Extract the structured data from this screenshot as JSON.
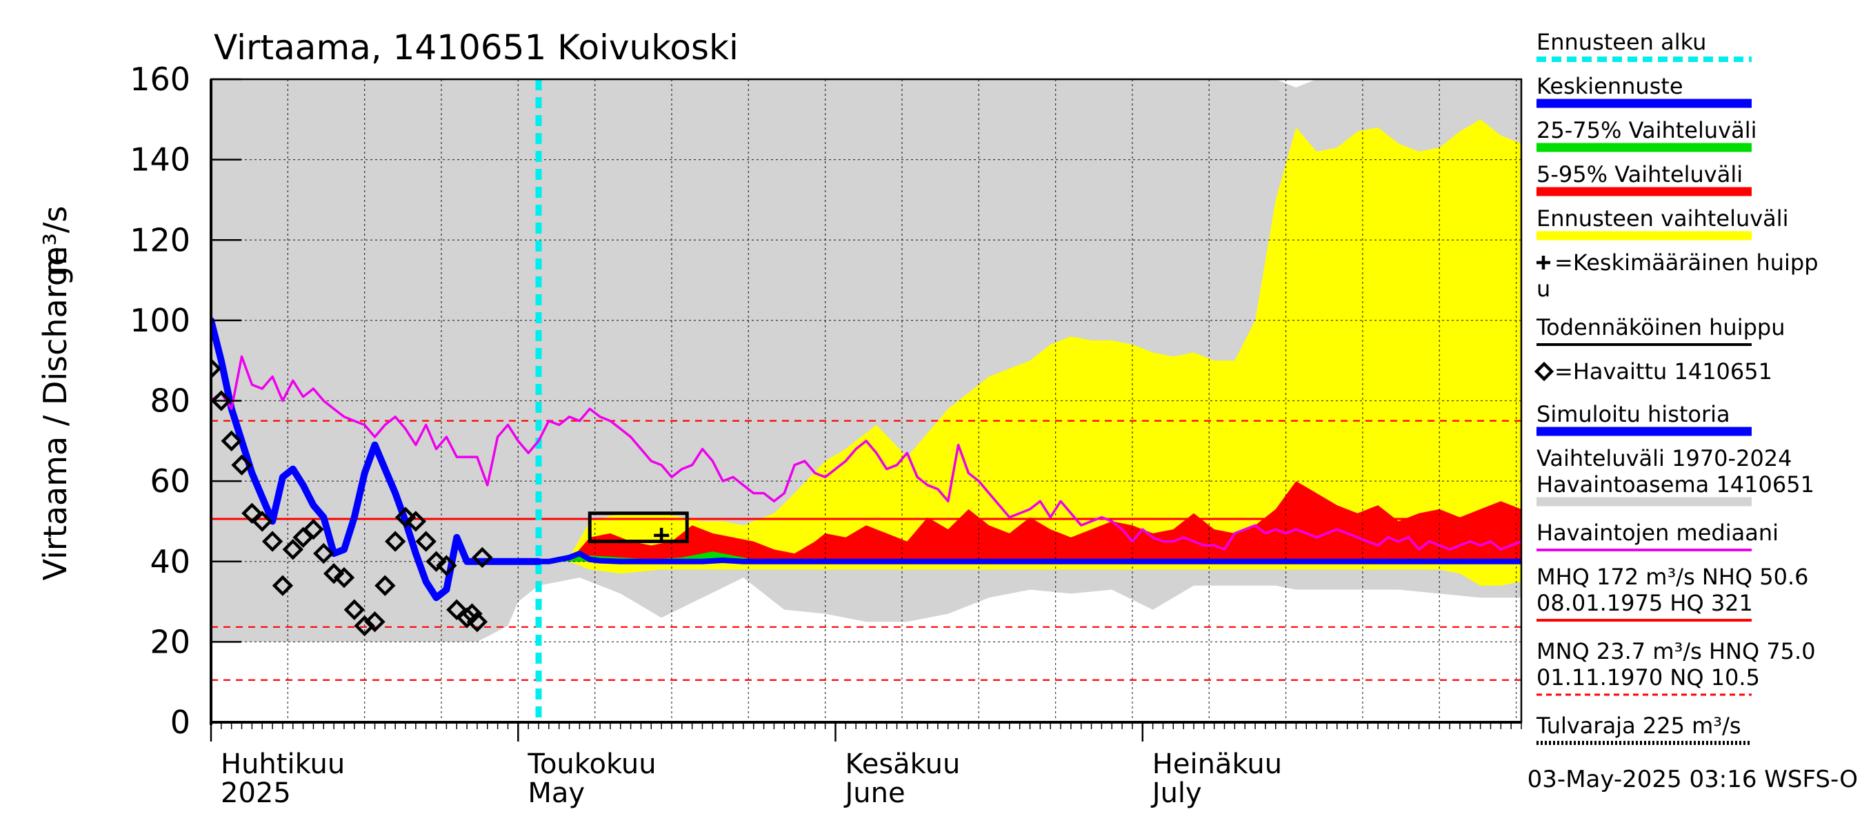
{
  "colors": {
    "hist_range": "#d3d3d3",
    "forecast_range": "#ffff00",
    "range_5_95": "#ff0000",
    "range_25_75": "#00dd00",
    "mean_forecast": "#0000ff",
    "simulated": "#0000ff",
    "median": "#ee00ee",
    "forecast_start": "#00eeee",
    "reference": "#ff0000",
    "peak": "#000000"
  },
  "chart_data": {
    "type": "line",
    "title": "Virtaama, 1410651 Koivukoski",
    "ylabel": "Virtaama / Discharge",
    "yunit": "m³/s",
    "ylim": [
      0,
      160
    ],
    "yticks": [
      0,
      20,
      40,
      60,
      80,
      100,
      120,
      140,
      160
    ],
    "x_range_days": [
      0,
      128
    ],
    "forecast_start_day": 32,
    "months": [
      {
        "label_fi": "Huhtikuu",
        "label_en": "2025",
        "day": 0
      },
      {
        "label_fi": "Toukokuu",
        "label_en": "May",
        "day": 30
      },
      {
        "label_fi": "Kesäkuu",
        "label_en": "June",
        "day": 61
      },
      {
        "label_fi": "Heinäkuu",
        "label_en": "July",
        "day": 91
      }
    ],
    "reference_lines": [
      {
        "name": "NHQ",
        "value": 50.6,
        "style": "solid"
      },
      {
        "name": "HNQ",
        "value": 75.0,
        "style": "dashed"
      },
      {
        "name": "MNQ",
        "value": 23.7,
        "style": "dashed"
      },
      {
        "name": "NQ",
        "value": 10.5,
        "style": "dashed"
      }
    ],
    "hist_range": {
      "x": [
        0,
        8,
        14,
        20,
        26,
        29,
        30,
        32,
        36,
        40,
        44,
        48,
        52,
        56,
        60,
        64,
        68,
        72,
        76,
        80,
        84,
        88,
        92,
        96,
        100,
        104,
        106,
        108,
        112,
        116,
        120,
        124,
        128
      ],
      "upper": [
        160,
        160,
        160,
        160,
        160,
        160,
        160,
        160,
        160,
        160,
        160,
        160,
        160,
        160,
        160,
        160,
        160,
        160,
        160,
        160,
        160,
        160,
        160,
        160,
        160,
        160,
        158,
        160,
        160,
        160,
        160,
        160,
        160
      ],
      "lower": [
        20,
        20,
        20,
        20,
        20,
        24,
        30,
        34,
        36,
        32,
        26,
        31,
        36,
        28,
        27,
        25,
        25,
        27,
        31,
        33,
        32,
        33,
        28,
        34,
        34,
        34,
        33,
        33,
        33,
        33,
        32,
        31,
        31
      ]
    },
    "forecast_range": {
      "x": [
        32,
        35,
        37,
        40,
        44,
        48,
        50,
        52,
        55,
        57,
        60,
        62,
        65,
        68,
        72,
        76,
        80,
        82,
        84,
        86,
        88,
        90,
        92,
        94,
        96,
        98,
        100,
        102,
        104,
        106,
        108,
        110,
        112,
        114,
        116,
        118,
        120,
        122,
        124,
        126,
        128
      ],
      "upper": [
        40,
        41,
        50,
        52,
        52,
        50,
        50,
        49,
        52,
        57,
        65,
        68,
        74,
        66,
        78,
        86,
        90,
        94,
        96,
        95,
        95,
        94,
        92,
        91,
        92,
        90,
        90,
        100,
        130,
        148,
        142,
        143,
        147,
        148,
        144,
        142,
        143,
        147,
        150,
        146,
        144
      ],
      "lower": [
        40,
        40,
        38,
        37,
        38,
        38,
        38,
        38,
        38,
        38,
        38,
        38,
        38,
        38,
        38,
        38,
        38,
        38,
        38,
        38,
        38,
        38,
        38,
        38,
        38,
        38,
        38,
        38,
        38,
        38,
        38,
        38,
        38,
        38,
        38,
        38,
        38,
        37,
        34,
        34,
        35
      ]
    },
    "range_5_95": {
      "x": [
        32,
        35,
        37,
        39,
        41,
        43,
        45,
        47,
        49,
        51,
        53,
        55,
        57,
        59,
        60,
        62,
        64,
        66,
        68,
        70,
        72,
        74,
        76,
        78,
        80,
        82,
        84,
        86,
        88,
        90,
        92,
        94,
        96,
        98,
        100,
        102,
        104,
        106,
        108,
        110,
        112,
        114,
        116,
        118,
        120,
        122,
        124,
        126,
        128
      ],
      "upper": [
        40,
        40,
        46,
        47,
        45,
        44,
        45,
        49,
        47,
        46,
        45,
        43,
        42,
        45,
        47,
        46,
        49,
        47,
        45,
        51,
        48,
        53,
        49,
        47,
        51,
        48,
        46,
        48,
        50,
        49,
        47,
        48,
        52,
        48,
        47,
        49,
        53,
        60,
        57,
        54,
        52,
        54,
        50,
        52,
        53,
        51,
        53,
        55,
        53
      ],
      "lower": [
        40,
        40,
        40,
        40,
        40,
        40,
        40,
        40,
        40,
        40,
        40,
        40,
        40,
        40,
        40,
        40,
        40,
        40,
        40,
        40,
        40,
        40,
        40,
        40,
        40,
        40,
        40,
        40,
        40,
        40,
        40,
        40,
        40,
        40,
        40,
        40,
        40,
        40,
        40,
        40,
        40,
        40,
        40,
        40,
        40,
        40,
        40,
        40,
        40
      ]
    },
    "range_25_75": {
      "x": [
        32,
        37,
        40,
        43,
        46,
        49,
        51,
        53,
        128
      ],
      "upper": [
        40,
        41.5,
        41,
        40.5,
        41,
        42.5,
        41.5,
        40.5,
        40.3
      ],
      "lower": [
        40,
        40,
        40,
        40,
        40,
        40,
        40,
        40,
        40
      ]
    },
    "series": [
      {
        "name": "Simuloitu historia",
        "x": [
          0,
          1,
          2,
          3,
          4,
          5,
          6,
          7,
          8,
          9,
          10,
          11,
          12,
          13,
          14,
          15,
          16,
          17,
          18,
          19,
          20,
          21,
          22,
          23,
          24,
          25,
          26,
          27,
          28,
          29,
          30,
          31,
          32
        ],
        "values": [
          100,
          90,
          78,
          70,
          62,
          56,
          50,
          61,
          63,
          59,
          54,
          51,
          42,
          43,
          51,
          62,
          69,
          63,
          57,
          50,
          42,
          35,
          31,
          33,
          46,
          40,
          40,
          40,
          40,
          40,
          40,
          40,
          40
        ]
      },
      {
        "name": "Keskiennuste",
        "x": [
          32,
          33,
          35,
          36,
          37,
          38,
          40,
          43,
          46,
          48,
          50,
          52,
          128
        ],
        "values": [
          40,
          40,
          41,
          42,
          40.5,
          40.2,
          40,
          40,
          40,
          40,
          40.3,
          40,
          40
        ]
      },
      {
        "name": "Havaintojen mediaani",
        "x": [
          0,
          1,
          2,
          3,
          4,
          5,
          6,
          7,
          8,
          9,
          10,
          11,
          12,
          13,
          14,
          15,
          16,
          17,
          18,
          19,
          20,
          21,
          22,
          23,
          24,
          25,
          26,
          27,
          28,
          29,
          30,
          31,
          32,
          33,
          34,
          35,
          36,
          37,
          38,
          39,
          40,
          41,
          42,
          43,
          44,
          45,
          46,
          47,
          48,
          49,
          50,
          51,
          52,
          53,
          54,
          55,
          56,
          57,
          58,
          59,
          60,
          61,
          62,
          63,
          64,
          65,
          66,
          67,
          68,
          69,
          70,
          71,
          72,
          73,
          74,
          75,
          76,
          77,
          78,
          79,
          80,
          81,
          82,
          83,
          84,
          85,
          86,
          87,
          88,
          89,
          90,
          91,
          92,
          93,
          94,
          95,
          96,
          97,
          98,
          99,
          100,
          101,
          102,
          103,
          104,
          105,
          106,
          107,
          108,
          109,
          110,
          111,
          112,
          113,
          114,
          115,
          116,
          117,
          118,
          119,
          120,
          121,
          122,
          123,
          124,
          125,
          126,
          127,
          128
        ],
        "values": [
          80,
          82,
          78,
          91,
          84,
          83,
          86,
          80,
          85,
          81,
          83,
          80,
          78,
          76,
          75,
          74,
          71,
          74,
          76,
          73,
          69,
          74,
          68,
          71,
          66,
          66,
          66,
          59,
          71,
          74,
          70,
          67,
          70,
          75,
          74,
          76,
          75,
          78,
          76,
          75,
          73,
          71,
          68,
          65,
          64,
          61,
          63,
          64,
          68,
          65,
          60,
          61,
          59,
          57,
          57,
          55,
          57,
          64,
          65,
          62,
          61,
          63,
          65,
          68,
          70,
          67,
          63,
          64,
          67,
          61,
          59,
          58,
          55,
          69,
          62,
          60,
          57,
          54,
          51,
          52,
          53,
          55,
          51,
          55,
          52,
          49,
          50,
          51,
          50,
          48,
          45,
          48,
          46,
          45,
          45,
          46,
          45,
          44,
          44,
          43,
          47,
          48,
          49,
          47,
          48,
          47,
          48,
          47,
          46,
          47,
          48,
          47,
          46,
          45,
          44,
          46,
          45,
          46,
          43,
          45,
          44,
          43,
          44,
          45,
          44,
          45,
          43,
          44,
          45
        ]
      },
      {
        "name": "Havaittu 1410651",
        "x": [
          0,
          1,
          2,
          3,
          4,
          5,
          6,
          7,
          8,
          9,
          10,
          11,
          12,
          13,
          14,
          15,
          16,
          17,
          18,
          19,
          20,
          21,
          22,
          23,
          24,
          25,
          26
        ],
        "values": [
          88,
          80,
          70,
          64,
          52,
          50,
          45,
          34,
          43,
          46,
          48,
          42,
          37,
          36,
          28,
          24,
          25,
          34,
          45,
          51,
          50,
          45,
          40,
          39,
          28,
          26,
          25
        ]
      }
    ],
    "observed_extra": {
      "x": [
        25.5,
        26.5
      ],
      "values": [
        27,
        41
      ]
    },
    "peak_box": {
      "x0": 37,
      "x1": 46.5,
      "y0": 45,
      "y1": 52
    },
    "mean_peak": {
      "x": 44,
      "y": 46.5
    },
    "legend": [
      {
        "label": "Ennusteen alku",
        "swatch": "dashed",
        "color_key": "forecast_start"
      },
      {
        "label": "Keskiennuste",
        "swatch": "thick",
        "color_key": "mean_forecast"
      },
      {
        "label": "25-75% Vaihteluväli",
        "swatch": "thick",
        "color_key": "range_25_75"
      },
      {
        "label": "5-95% Vaihteluväli",
        "swatch": "thick",
        "color_key": "range_5_95"
      },
      {
        "label": "Ennusteen vaihteluväli",
        "swatch": "thick",
        "color_key": "forecast_range"
      },
      {
        "label": "=Keskimääräinen huipp",
        "label2": "u",
        "swatch": "plus",
        "color_key": "peak"
      },
      {
        "label": "Todennäköinen huippu",
        "swatch": "thin",
        "color_key": "peak"
      },
      {
        "label": "=Havaittu 1410651",
        "swatch": "diamond",
        "color_key": "peak"
      },
      {
        "label": "Simuloitu historia",
        "swatch": "thick",
        "color_key": "simulated"
      },
      {
        "label": "Vaihteluväli 1970-2024",
        "label2": " Havaintoasema 1410651",
        "swatch": "thick",
        "color_key": "hist_range"
      },
      {
        "label": "Havaintojen mediaani",
        "swatch": "thin",
        "color_key": "median"
      },
      {
        "label": "MHQ  172 m³/s NHQ 50.6",
        "label2": "08.01.1975 HQ  321",
        "swatch": "thin",
        "color_key": "reference"
      },
      {
        "label": "MNQ 23.7 m³/s HNQ 75.0",
        "label2": "01.11.1970 NQ 10.5",
        "swatch": "dashed-thin",
        "color_key": "reference"
      },
      {
        "label": "Tulvaraja 225 m³/s",
        "swatch": "dotted",
        "color_key": "peak"
      }
    ],
    "footer": "03-May-2025 03:16 WSFS-O"
  }
}
